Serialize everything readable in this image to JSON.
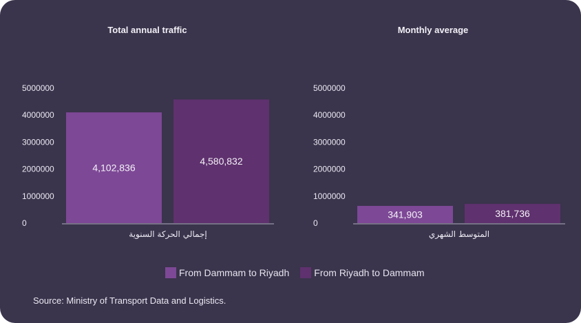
{
  "colors": {
    "background": "#3a344c",
    "series1": "#7d4896",
    "series2": "#5f316e",
    "axis": "#8a8598",
    "text": "#ece9f2"
  },
  "legend": [
    {
      "label": "From Dammam to Riyadh",
      "color": "#7d4896"
    },
    {
      "label": "From Riyadh to Dammam",
      "color": "#5f316e"
    }
  ],
  "source": "Source: Ministry of Transport Data and Logistics.",
  "chart_data": [
    {
      "type": "bar",
      "title": "Total annual traffic",
      "categories": [
        "إجمالي الحركة السنوية"
      ],
      "series": [
        {
          "name": "From Dammam to Riyadh",
          "values": [
            4102836
          ],
          "labels": [
            "4,102,836"
          ]
        },
        {
          "name": "From Riyadh to Dammam",
          "values": [
            4580832
          ],
          "labels": [
            "4,580,832"
          ]
        }
      ],
      "yticks": [
        "0",
        "1000000",
        "2000000",
        "3000000",
        "4000000",
        "5000000"
      ],
      "ylim": [
        0,
        5000000
      ],
      "xlabel": "",
      "ylabel": "",
      "grid": false,
      "legend": "bottom"
    },
    {
      "type": "bar",
      "title": "Monthly average",
      "categories": [
        "المتوسط الشهري"
      ],
      "series": [
        {
          "name": "From Dammam to Riyadh",
          "values": [
            341903
          ],
          "labels": [
            "341,903"
          ]
        },
        {
          "name": "From Riyadh to Dammam",
          "values": [
            381736
          ],
          "labels": [
            "381,736"
          ]
        }
      ],
      "yticks": [
        "0",
        "1000000",
        "2000000",
        "3000000",
        "4000000",
        "5000000"
      ],
      "ylim": [
        0,
        5000000
      ],
      "xlabel": "",
      "ylabel": "",
      "grid": false,
      "legend": "bottom"
    }
  ]
}
